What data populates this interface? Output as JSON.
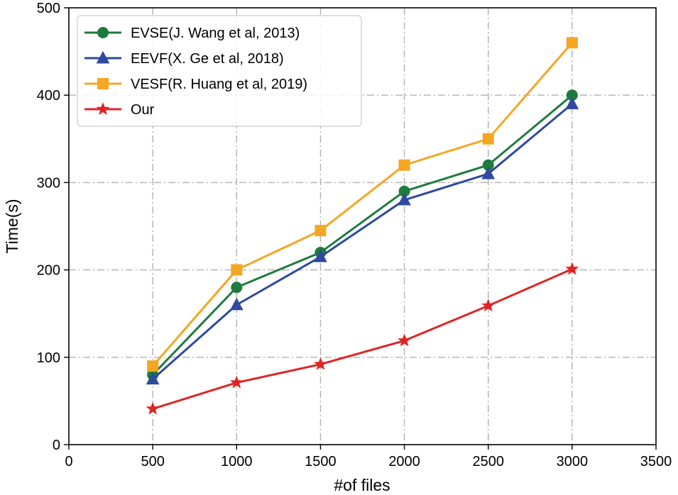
{
  "chart_data": {
    "type": "line",
    "title": "",
    "xlabel": "#of files",
    "ylabel": "Time(s)",
    "xlim": [
      0,
      3500
    ],
    "ylim": [
      0,
      500
    ],
    "xticks": [
      0,
      500,
      1000,
      1500,
      2000,
      2500,
      3000,
      3500
    ],
    "yticks": [
      0,
      100,
      200,
      300,
      400,
      500
    ],
    "grid": true,
    "legend_position": "top-left",
    "x": [
      500,
      1000,
      1500,
      2000,
      2500,
      3000
    ],
    "series": [
      {
        "name": "EVSE(J. Wang et al, 2013)",
        "values": [
          80,
          180,
          220,
          290,
          320,
          400
        ],
        "color": "#1e7b3c",
        "marker": "circle"
      },
      {
        "name": "EEVF(X. Ge et al, 2018)",
        "values": [
          75,
          160,
          215,
          280,
          310,
          390
        ],
        "color": "#2e4a9e",
        "marker": "triangle"
      },
      {
        "name": "VESF(R. Huang et al, 2019)",
        "values": [
          90,
          200,
          245,
          320,
          350,
          460
        ],
        "color": "#f5a623",
        "marker": "square"
      },
      {
        "name": "Our",
        "values": [
          41,
          71,
          92,
          119,
          159,
          201
        ],
        "color": "#e02424",
        "marker": "star"
      }
    ]
  }
}
